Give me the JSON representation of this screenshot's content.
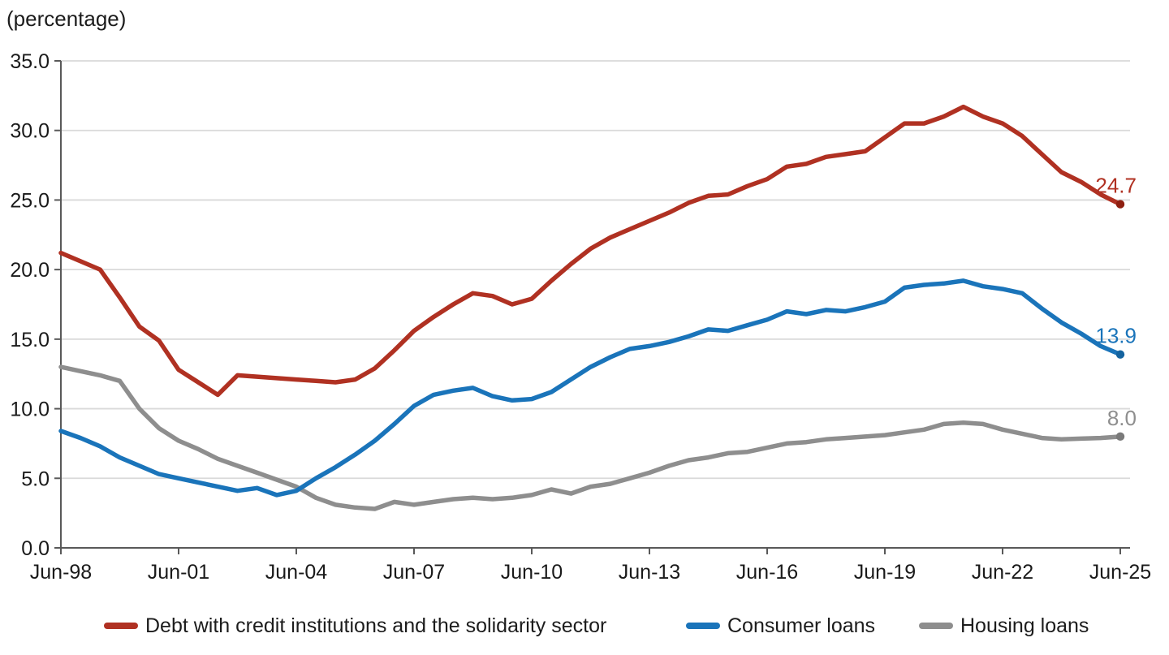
{
  "unit_label": "(percentage)",
  "colors": {
    "debt_line": "#b03122",
    "debt_end_dot": "#8e1f10",
    "consumer_line": "#1a74ba",
    "consumer_end_dot": "#14639f",
    "housing_line": "#8e8e8e",
    "housing_end_dot": "#7a7a7a",
    "axis": "#595959",
    "gridline": "#dadada",
    "tick_text": "#1a1a1a",
    "background": "#ffffff"
  },
  "legend": {
    "items": [
      {
        "label": "Debt with credit institutions and the solidarity sector",
        "color": "#b03122"
      },
      {
        "label": "Consumer loans",
        "color": "#1a74ba"
      },
      {
        "label": "Housing loans",
        "color": "#8e8e8e"
      }
    ]
  },
  "chart_data": {
    "type": "line",
    "title": "(percentage)",
    "xlabel": "",
    "ylabel": "(percentage)",
    "ylim": [
      0,
      35
    ],
    "grid": "horizontal",
    "legend_position": "bottom",
    "y_tick_labels": [
      "0.0",
      "5.0",
      "10.0",
      "15.0",
      "20.0",
      "25.0",
      "30.0",
      "35.0"
    ],
    "y_tick_values": [
      0,
      5,
      10,
      15,
      20,
      25,
      30,
      35
    ],
    "x_tick_labels": [
      "Jun-98",
      "Jun-01",
      "Jun-04",
      "Jun-07",
      "Jun-10",
      "Jun-13",
      "Jun-16",
      "Jun-19",
      "Jun-22",
      "Jun-25"
    ],
    "x_tick_indices": [
      0,
      6,
      12,
      18,
      24,
      30,
      36,
      42,
      48,
      54
    ],
    "x": [
      "Jun-98",
      "Dec-98",
      "Jun-99",
      "Dec-99",
      "Jun-00",
      "Dec-00",
      "Jun-01",
      "Dec-01",
      "Jun-02",
      "Dec-02",
      "Jun-03",
      "Dec-03",
      "Jun-04",
      "Dec-04",
      "Jun-05",
      "Dec-05",
      "Jun-06",
      "Dec-06",
      "Jun-07",
      "Dec-07",
      "Jun-08",
      "Dec-08",
      "Jun-09",
      "Dec-09",
      "Jun-10",
      "Dec-10",
      "Jun-11",
      "Dec-11",
      "Jun-12",
      "Dec-12",
      "Jun-13",
      "Dec-13",
      "Jun-14",
      "Dec-14",
      "Jun-15",
      "Dec-15",
      "Jun-16",
      "Dec-16",
      "Jun-17",
      "Dec-17",
      "Jun-18",
      "Dec-18",
      "Jun-19",
      "Dec-19",
      "Jun-20",
      "Dec-20",
      "Jun-21",
      "Dec-21",
      "Jun-22",
      "Dec-22",
      "Jun-23",
      "Dec-23",
      "Jun-24",
      "Dec-24",
      "Jun-25"
    ],
    "series": [
      {
        "name": "Debt with credit institutions and the solidarity sector",
        "color": "#b03122",
        "end_dot_color": "#8e1f10",
        "end_label": "24.7",
        "values": [
          21.2,
          20.6,
          20.0,
          18.0,
          15.9,
          14.9,
          12.8,
          11.9,
          11.0,
          12.4,
          12.3,
          12.2,
          12.1,
          12.0,
          11.9,
          12.1,
          12.9,
          14.2,
          15.6,
          16.6,
          17.5,
          18.3,
          18.1,
          17.5,
          17.9,
          19.2,
          20.4,
          21.5,
          22.3,
          22.9,
          23.5,
          24.1,
          24.8,
          25.3,
          25.4,
          26.0,
          26.5,
          27.4,
          27.6,
          28.1,
          28.3,
          28.5,
          29.5,
          30.5,
          30.5,
          31.0,
          31.7,
          31.0,
          30.5,
          29.6,
          28.3,
          27.0,
          26.3,
          25.4,
          24.7
        ]
      },
      {
        "name": "Consumer loans",
        "color": "#1a74ba",
        "end_dot_color": "#14639f",
        "end_label": "13.9",
        "values": [
          8.4,
          7.9,
          7.3,
          6.5,
          5.9,
          5.3,
          5.0,
          4.7,
          4.4,
          4.1,
          4.3,
          3.8,
          4.1,
          5.0,
          5.8,
          6.7,
          7.7,
          8.9,
          10.2,
          11.0,
          11.3,
          11.5,
          10.9,
          10.6,
          10.7,
          11.2,
          12.1,
          13.0,
          13.7,
          14.3,
          14.5,
          14.8,
          15.2,
          15.7,
          15.6,
          16.0,
          16.4,
          17.0,
          16.8,
          17.1,
          17.0,
          17.3,
          17.7,
          18.7,
          18.9,
          19.0,
          19.2,
          18.8,
          18.6,
          18.3,
          17.2,
          16.2,
          15.4,
          14.5,
          13.9
        ]
      },
      {
        "name": "Housing loans",
        "color": "#8e8e8e",
        "end_dot_color": "#7a7a7a",
        "end_label": "8.0",
        "values": [
          13.0,
          12.7,
          12.4,
          12.0,
          10.0,
          8.6,
          7.7,
          7.1,
          6.4,
          5.9,
          5.4,
          4.9,
          4.4,
          3.6,
          3.1,
          2.9,
          2.8,
          3.3,
          3.1,
          3.3,
          3.5,
          3.6,
          3.5,
          3.6,
          3.8,
          4.2,
          3.9,
          4.4,
          4.6,
          5.0,
          5.4,
          5.9,
          6.3,
          6.5,
          6.8,
          6.9,
          7.2,
          7.5,
          7.6,
          7.8,
          7.9,
          8.0,
          8.1,
          8.3,
          8.5,
          8.9,
          9.0,
          8.9,
          8.5,
          8.2,
          7.9,
          7.8,
          7.85,
          7.9,
          8.0
        ]
      }
    ]
  }
}
